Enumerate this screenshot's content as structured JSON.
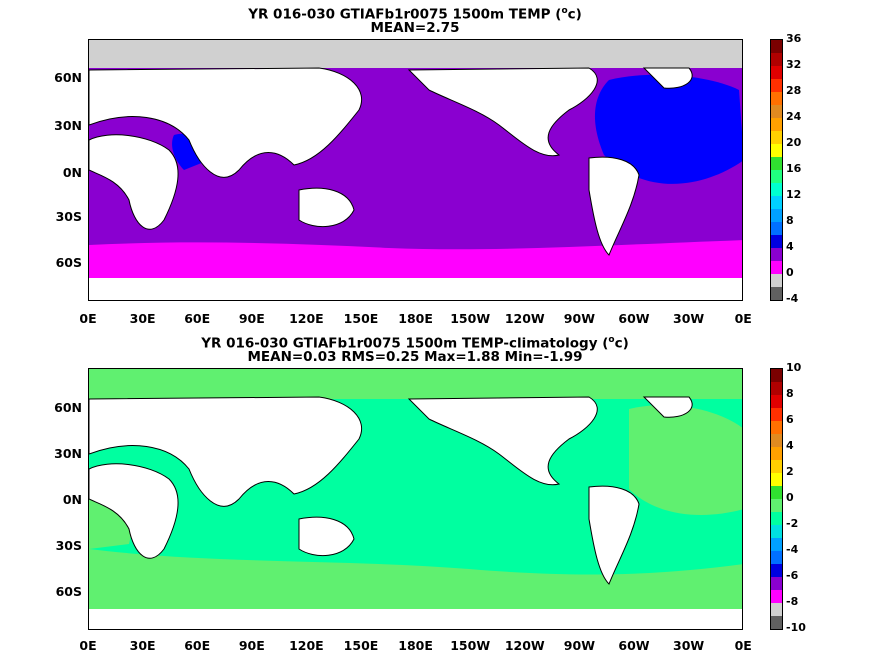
{
  "panel1": {
    "title": "YR 016-030 GTIAFb1r0075 1500m TEMP (",
    "unit_sup": "o",
    "unit_tail": "c)",
    "subtitle": "MEAN=2.75",
    "colorbar_labels": [
      "36",
      "32",
      "28",
      "24",
      "20",
      "16",
      "12",
      "8",
      "4",
      "0",
      "-4"
    ],
    "colorbar_colors": [
      "#7a0000",
      "#b00000",
      "#e00000",
      "#ff3000",
      "#ff7000",
      "#e08a20",
      "#ffa000",
      "#ffd000",
      "#ffff00",
      "#30e030",
      "#20ff80",
      "#00ffd0",
      "#00d0ff",
      "#00a0ff",
      "#0070ff",
      "#0000e0",
      "#8a00d0",
      "#ff00ff",
      "#d0d0d0",
      "#606060"
    ]
  },
  "panel2": {
    "title": "YR 016-030 GTIAFb1r0075 1500m TEMP-climatology (",
    "unit_sup": "o",
    "unit_tail": "c)",
    "subtitle": "MEAN=0.03   RMS=0.25   Max=1.88   Min=-1.99",
    "colorbar_labels": [
      "10",
      "8",
      "6",
      "4",
      "2",
      "0",
      "-2",
      "-4",
      "-6",
      "-8",
      "-10"
    ],
    "colorbar_colors": [
      "#7a0000",
      "#b00000",
      "#e00000",
      "#ff3000",
      "#ff7000",
      "#e08a20",
      "#ffa000",
      "#ffd000",
      "#ffff00",
      "#30e030",
      "#60f070",
      "#00ffa0",
      "#00e0e0",
      "#00a0ff",
      "#0070ff",
      "#0000e0",
      "#8a00d0",
      "#ff00ff",
      "#d0d0d0",
      "#606060"
    ]
  },
  "lat_labels": [
    "60N",
    "30N",
    "0N",
    "30S",
    "60S"
  ],
  "lon_labels": [
    "0E",
    "30E",
    "60E",
    "90E",
    "120E",
    "150E",
    "180E",
    "150W",
    "120W",
    "90W",
    "60W",
    "30W",
    "0E"
  ],
  "colors": {
    "ocean1_purple": "#8a00d0",
    "ocean1_magenta": "#ff00ff",
    "ocean1_blue": "#0000ff",
    "ocean1_ice": "#d0d0d0",
    "ocean2_green": "#60f070",
    "ocean2_cyan": "#00ffa0",
    "land": "#ffffff"
  }
}
